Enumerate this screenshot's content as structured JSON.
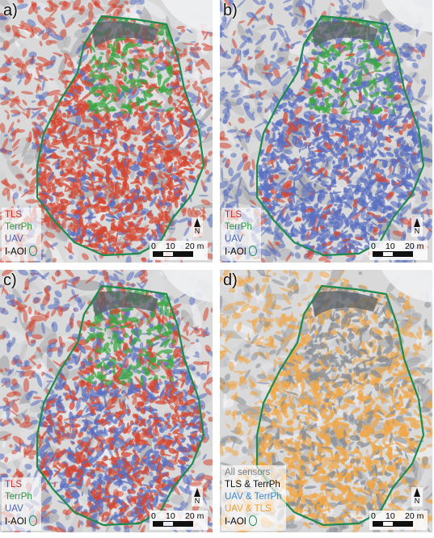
{
  "panels": [
    {
      "label": "a)",
      "scheme": "red",
      "legend": [
        {
          "text": "TLS",
          "color": "#c8302c"
        },
        {
          "text": "TerrPh",
          "color": "#2a9a3a"
        },
        {
          "text": "UAV",
          "color": "#4a63b8"
        },
        {
          "text": "I-AOI",
          "color": "#222222",
          "symbol": "aoi-outline"
        }
      ]
    },
    {
      "label": "b)",
      "scheme": "blue",
      "legend": [
        {
          "text": "TLS",
          "color": "#c8302c"
        },
        {
          "text": "TerrPh",
          "color": "#2a9a3a"
        },
        {
          "text": "UAV",
          "color": "#4a63b8"
        },
        {
          "text": "I-AOI",
          "color": "#222222",
          "symbol": "aoi-outline"
        }
      ]
    },
    {
      "label": "c)",
      "scheme": "mixed",
      "legend": [
        {
          "text": "TLS",
          "color": "#c8302c"
        },
        {
          "text": "TerrPh",
          "color": "#2a9a3a"
        },
        {
          "text": "UAV",
          "color": "#4a63b8"
        },
        {
          "text": "I-AOI",
          "color": "#222222",
          "symbol": "aoi-outline"
        }
      ]
    },
    {
      "label": "d)",
      "scheme": "orange",
      "legend": [
        {
          "text": "All sensors",
          "color": "#7d7d7d"
        },
        {
          "text": "TLS & TerrPh",
          "color": "#111111"
        },
        {
          "text": "UAV & TerrPh",
          "color": "#3a86c8"
        },
        {
          "text": "UAV & TLS",
          "color": "#f0a030"
        },
        {
          "text": "I-AOI",
          "color": "#222222",
          "symbol": "aoi-outline"
        }
      ]
    }
  ],
  "scalebar": {
    "ticks": [
      "0",
      "10",
      "20 m"
    ]
  },
  "north_label": "N",
  "colors": {
    "aoi_outline": "#1e8a4e",
    "hillshade": "#d9d9d9",
    "tls": "#d5452f",
    "terrph": "#3aa642",
    "uav": "#5a6fc0",
    "orange": "#f0a646",
    "gray": "#8a8f96"
  }
}
